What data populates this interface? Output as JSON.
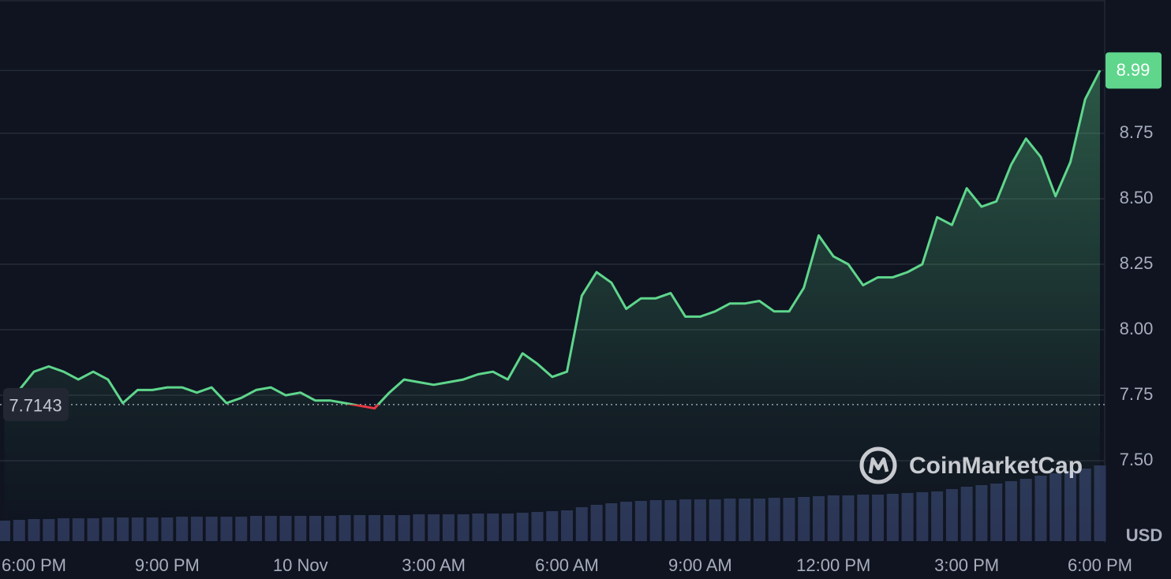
{
  "chart_data": {
    "type": "line",
    "currency": "USD",
    "watermark": "CoinMarketCap",
    "categories": [
      null,
      null,
      "6:00 PM",
      null,
      null,
      null,
      null,
      null,
      null,
      null,
      null,
      "9:00 PM",
      null,
      null,
      null,
      null,
      null,
      null,
      null,
      null,
      "10 Nov",
      null,
      null,
      null,
      null,
      null,
      null,
      null,
      null,
      "3:00 AM",
      null,
      null,
      null,
      null,
      null,
      null,
      null,
      null,
      "6:00 AM",
      null,
      null,
      null,
      null,
      null,
      null,
      null,
      null,
      "9:00 AM",
      null,
      null,
      null,
      null,
      null,
      null,
      null,
      null,
      "12:00 PM",
      null,
      null,
      null,
      null,
      null,
      null,
      null,
      null,
      "3:00 PM",
      null,
      null,
      null,
      null,
      null,
      null,
      null,
      null,
      "6:00 PM"
    ],
    "series": [
      {
        "name": "Price",
        "color": "#5fd68c",
        "values": [
          7.7,
          7.77,
          7.84,
          7.86,
          7.84,
          7.81,
          7.84,
          7.81,
          7.72,
          7.77,
          7.77,
          7.78,
          7.78,
          7.76,
          7.78,
          7.72,
          7.74,
          7.77,
          7.78,
          7.75,
          7.76,
          7.73,
          7.73,
          7.72,
          7.71,
          7.7,
          7.76,
          7.81,
          7.8,
          7.79,
          7.8,
          7.81,
          7.83,
          7.84,
          7.81,
          7.91,
          7.87,
          7.82,
          7.84,
          8.13,
          8.22,
          8.18,
          8.08,
          8.12,
          8.12,
          8.14,
          8.05,
          8.05,
          8.07,
          8.1,
          8.1,
          8.11,
          8.07,
          8.07,
          8.16,
          8.36,
          8.28,
          8.25,
          8.17,
          8.2,
          8.2,
          8.22,
          8.25,
          8.43,
          8.4,
          8.54,
          8.47,
          8.49,
          8.63,
          8.73,
          8.66,
          8.51,
          8.64,
          8.88,
          8.99
        ]
      },
      {
        "name": "Volume",
        "color": "#2b3556",
        "values": [
          26,
          27,
          28,
          28,
          29,
          29,
          29,
          30,
          30,
          30,
          30,
          30,
          31,
          31,
          31,
          31,
          31,
          32,
          32,
          32,
          32,
          32,
          32,
          33,
          33,
          33,
          33,
          33,
          34,
          34,
          34,
          34,
          35,
          35,
          35,
          36,
          37,
          38,
          39,
          43,
          46,
          48,
          50,
          51,
          52,
          52,
          53,
          53,
          53,
          54,
          54,
          54,
          55,
          55,
          56,
          57,
          58,
          58,
          59,
          59,
          60,
          61,
          62,
          63,
          66,
          69,
          71,
          73,
          76,
          79,
          83,
          86,
          89,
          92,
          96
        ]
      }
    ],
    "reference_price": 7.7143,
    "current_price": 8.99,
    "ylim": [
      7.193,
      9.259
    ],
    "yticks": [
      {
        "value": 7.5,
        "label": "7.50"
      },
      7.75,
      {
        "value": 8,
        "label": "8.00"
      },
      8.25,
      {
        "value": 8.5,
        "label": "8.50"
      },
      8.75
    ],
    "grid": true
  }
}
